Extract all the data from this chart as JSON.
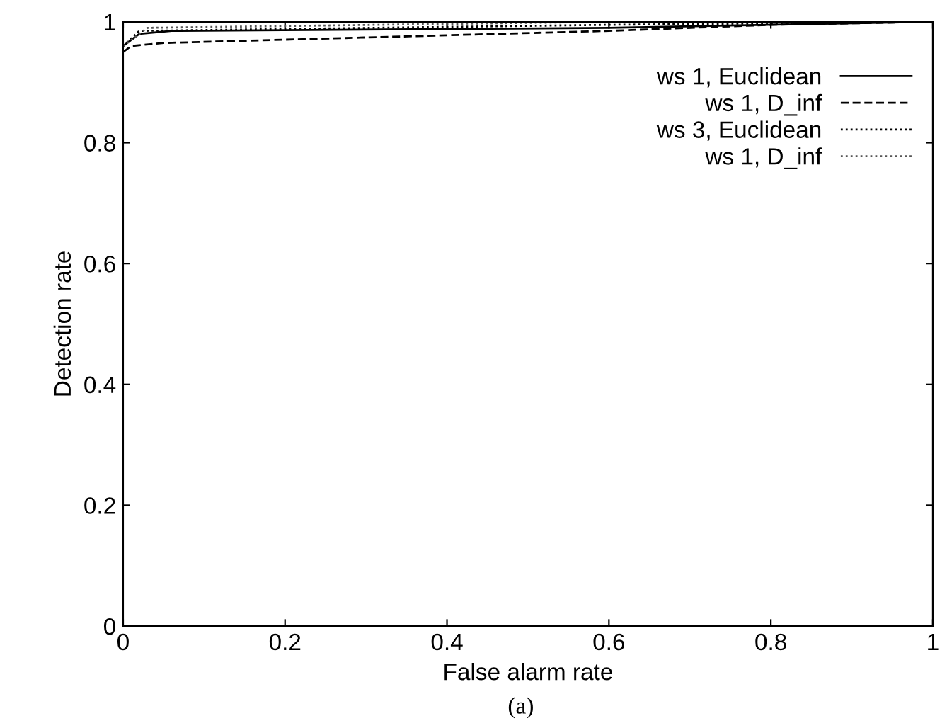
{
  "chart_data": {
    "type": "line",
    "xlabel": "False alarm rate",
    "ylabel": "Detection rate",
    "annotations": [
      "(a)"
    ],
    "xlim": [
      0,
      1
    ],
    "ylim": [
      0,
      1
    ],
    "xticks": [
      0,
      0.2,
      0.4,
      0.6,
      0.8,
      1
    ],
    "yticks": [
      0,
      0.2,
      0.4,
      0.6,
      0.8,
      1
    ],
    "grid": false,
    "legend": "top right",
    "marker": "none",
    "series": [
      {
        "name": "ws 1, Euclidean",
        "color": "#000000",
        "line_style": "solid",
        "x": [
          0,
          0.02,
          0.06,
          0.6,
          1
        ],
        "values": [
          0.96,
          0.98,
          0.985,
          0.99,
          1
        ]
      },
      {
        "name": "ws 1, D_inf",
        "color": "#000000",
        "line_style": "dashed",
        "x": [
          0,
          0.01,
          0.05,
          0.6,
          0.8,
          1
        ],
        "values": [
          0.95,
          0.96,
          0.965,
          0.985,
          0.995,
          1
        ]
      },
      {
        "name": "ws 3, Euclidean",
        "color": "#000000",
        "line_style": "dotted",
        "x": [
          0,
          0.02,
          0.6,
          1
        ],
        "values": [
          0.96,
          0.985,
          0.995,
          1
        ]
      },
      {
        "name": "ws 1, D_inf",
        "color": "#555555",
        "line_style": "dotted",
        "x": [
          0,
          0.03,
          0.6,
          1
        ],
        "values": [
          0.96,
          0.99,
          1,
          1
        ]
      }
    ]
  }
}
